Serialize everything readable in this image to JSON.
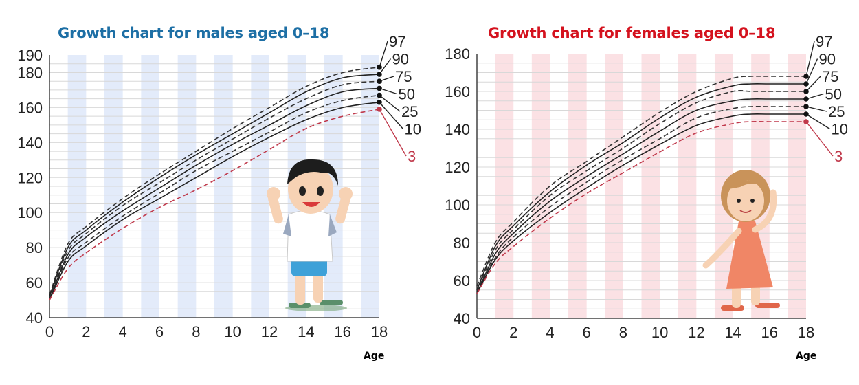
{
  "chart_data": [
    {
      "type": "line",
      "title": "Growth chart for males aged 0–18",
      "xlabel": "Age",
      "ylabel": "",
      "xlim": [
        0,
        18
      ],
      "ylim": [
        40,
        190
      ],
      "x_ticks": [
        "0",
        "2",
        "4",
        "6",
        "8",
        "10",
        "12",
        "14",
        "16",
        "18"
      ],
      "y_ticks": [
        "40",
        "60",
        "80",
        "100",
        "120",
        "140",
        "160",
        "180",
        "190"
      ],
      "grid": true,
      "title_color": "#1d6fa5",
      "band_color": "#e3ebfa",
      "x": [
        0,
        1,
        2,
        4,
        6,
        8,
        10,
        12,
        14,
        16,
        18
      ],
      "series": [
        {
          "name": "97",
          "style": "dashed",
          "color": "#333333",
          "values": [
            53,
            82,
            92,
            108,
            122,
            135,
            148,
            160,
            172,
            180,
            183
          ]
        },
        {
          "name": "90",
          "style": "solid",
          "color": "#222222",
          "values": [
            52,
            80,
            90,
            106,
            120,
            133,
            145,
            157,
            169,
            177,
            179
          ]
        },
        {
          "name": "75",
          "style": "dashed",
          "color": "#333333",
          "values": [
            51,
            78,
            88,
            104,
            117,
            130,
            142,
            154,
            165,
            173,
            175
          ]
        },
        {
          "name": "50",
          "style": "solid",
          "color": "#222222",
          "values": [
            50,
            76,
            86,
            101,
            114,
            127,
            139,
            150,
            161,
            169,
            171
          ]
        },
        {
          "name": "25",
          "style": "dashed",
          "color": "#333333",
          "values": [
            50,
            74,
            83,
            98,
            111,
            124,
            135,
            146,
            157,
            164,
            167
          ]
        },
        {
          "name": "10",
          "style": "solid",
          "color": "#222222",
          "values": [
            50,
            72,
            81,
            96,
            108,
            120,
            132,
            143,
            153,
            160,
            163
          ]
        },
        {
          "name": "3",
          "style": "dashed",
          "color": "#c0394b",
          "values": [
            50,
            68,
            77,
            91,
            103,
            113,
            124,
            136,
            148,
            155,
            159
          ]
        }
      ]
    },
    {
      "type": "line",
      "title": "Growth chart for females aged 0–18",
      "xlabel": "Age",
      "ylabel": "",
      "xlim": [
        0,
        18
      ],
      "ylim": [
        40,
        180
      ],
      "x_ticks": [
        "0",
        "2",
        "4",
        "6",
        "8",
        "10",
        "12",
        "14",
        "16",
        "18"
      ],
      "y_ticks": [
        "40",
        "60",
        "80",
        "100",
        "120",
        "140",
        "160",
        "180"
      ],
      "grid": true,
      "title_color": "#d4121e",
      "band_color": "#fbe1e4",
      "x": [
        0,
        1,
        2,
        4,
        6,
        8,
        10,
        12,
        14,
        15,
        16,
        18
      ],
      "series": [
        {
          "name": "97",
          "style": "dashed",
          "color": "#333333",
          "values": [
            57,
            80,
            91,
            110,
            123,
            136,
            149,
            160,
            167,
            168,
            168,
            168
          ]
        },
        {
          "name": "90",
          "style": "solid",
          "color": "#222222",
          "values": [
            55,
            78,
            89,
            107,
            121,
            133,
            146,
            157,
            163,
            164,
            164,
            164
          ]
        },
        {
          "name": "75",
          "style": "dashed",
          "color": "#333333",
          "values": [
            54,
            76,
            87,
            105,
            118,
            130,
            143,
            154,
            160,
            160,
            160,
            160
          ]
        },
        {
          "name": "50",
          "style": "solid",
          "color": "#222222",
          "values": [
            53,
            74,
            85,
            102,
            115,
            127,
            139,
            150,
            155,
            156,
            156,
            156
          ]
        },
        {
          "name": "25",
          "style": "dashed",
          "color": "#333333",
          "values": [
            53,
            72,
            83,
            99,
            112,
            124,
            135,
            146,
            151,
            152,
            152,
            152
          ]
        },
        {
          "name": "10",
          "style": "solid",
          "color": "#222222",
          "values": [
            53,
            71,
            81,
            96,
            109,
            121,
            132,
            142,
            147,
            148,
            148,
            148
          ]
        },
        {
          "name": "3",
          "style": "dashed",
          "color": "#c0394b",
          "values": [
            53,
            69,
            78,
            93,
            106,
            117,
            128,
            138,
            143,
            144,
            144,
            144
          ]
        }
      ]
    }
  ]
}
